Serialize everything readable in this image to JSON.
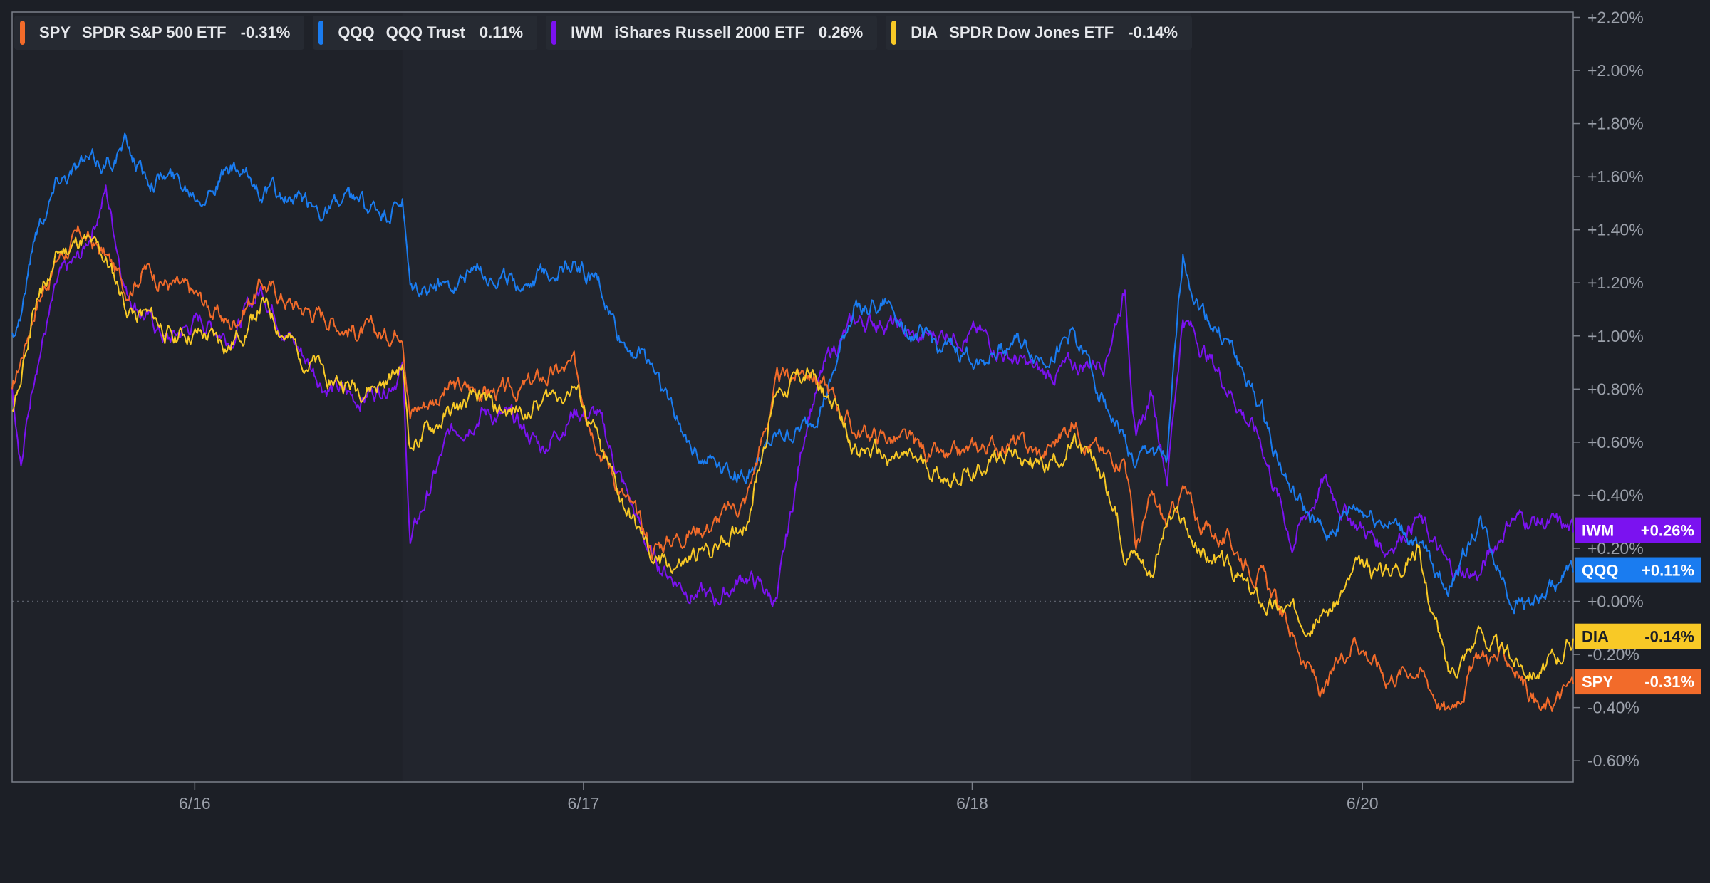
{
  "chart_data": {
    "type": "line",
    "title": "",
    "xlabel": "",
    "ylabel": "",
    "x_ticks": [
      "6/16",
      "6/17",
      "6/18",
      "6/20"
    ],
    "y_ticks": [
      "+2.20%",
      "+2.00%",
      "+1.80%",
      "+1.60%",
      "+1.40%",
      "+1.20%",
      "+1.00%",
      "+0.80%",
      "+0.60%",
      "+0.40%",
      "+0.20%",
      "+0.00%",
      "-0.20%",
      "-0.40%",
      "-0.60%"
    ],
    "y_tick_values": [
      2.2,
      2.0,
      1.8,
      1.6,
      1.4,
      1.2,
      1.0,
      0.8,
      0.6,
      0.4,
      0.2,
      0.0,
      -0.2,
      -0.4,
      -0.6
    ],
    "ylim": [
      -0.68,
      2.22
    ],
    "xlim": [
      0,
      100
    ],
    "x_tick_positions": [
      11.7,
      36.6,
      61.5,
      86.5
    ],
    "session_breaks": [
      25.0,
      75.5
    ],
    "zero_line": 0.0,
    "legend_position": "top-left",
    "series": [
      {
        "ticker": "SPY",
        "name": "SPDR S&P 500 ETF",
        "change": "-0.31%",
        "end_label": "-0.31%",
        "color": "#f26b2a",
        "x": [
          0,
          0.6,
          1.5,
          3,
          4.5,
          6,
          7.3,
          8.5,
          10,
          12,
          14,
          16,
          18,
          20,
          22,
          24,
          25,
          25.5,
          28,
          30,
          32,
          34,
          36,
          37.5,
          39,
          41,
          43,
          45,
          47,
          49,
          51,
          52.5,
          54,
          56,
          58,
          60,
          62,
          64,
          66,
          68,
          70,
          71.3,
          72,
          73,
          74,
          75,
          76,
          78,
          80,
          82,
          84,
          86,
          88,
          90,
          92,
          94,
          96,
          98,
          100
        ],
        "y": [
          0.78,
          0.92,
          1.12,
          1.3,
          1.38,
          1.3,
          1.18,
          1.26,
          1.2,
          1.14,
          1.04,
          1.2,
          1.12,
          1.08,
          1.02,
          1.0,
          1.05,
          0.72,
          0.8,
          0.8,
          0.78,
          0.84,
          0.88,
          0.62,
          0.42,
          0.2,
          0.26,
          0.3,
          0.38,
          0.82,
          0.88,
          0.78,
          0.64,
          0.62,
          0.58,
          0.52,
          0.58,
          0.6,
          0.55,
          0.68,
          0.54,
          0.56,
          0.2,
          0.38,
          0.28,
          0.42,
          0.3,
          0.22,
          0.1,
          -0.12,
          -0.36,
          -0.12,
          -0.28,
          -0.24,
          -0.42,
          -0.2,
          -0.22,
          -0.42,
          -0.31
        ]
      },
      {
        "ticker": "QQQ",
        "name": "QQQ Trust",
        "change": "0.11%",
        "end_label": "+0.11%",
        "color": "#1a7cf0",
        "x": [
          0,
          0.6,
          1.5,
          3,
          4.5,
          6,
          7.3,
          8.5,
          10,
          12,
          14,
          16,
          18,
          20,
          22,
          24,
          25,
          25.5,
          28,
          30,
          32,
          34,
          36,
          37.5,
          39,
          41,
          43,
          45,
          47,
          49,
          51,
          52.5,
          54,
          56,
          58,
          60,
          62,
          64,
          66,
          68,
          70,
          71.3,
          72,
          73,
          74,
          75,
          76,
          78,
          80,
          82,
          84,
          86,
          88,
          90,
          92,
          94,
          96,
          98,
          100
        ],
        "y": [
          1.0,
          1.1,
          1.4,
          1.6,
          1.65,
          1.65,
          1.72,
          1.6,
          1.6,
          1.55,
          1.62,
          1.55,
          1.5,
          1.48,
          1.5,
          1.45,
          1.5,
          1.15,
          1.2,
          1.26,
          1.2,
          1.24,
          1.28,
          1.2,
          0.98,
          0.9,
          0.62,
          0.54,
          0.48,
          0.6,
          0.65,
          0.82,
          1.12,
          1.12,
          1.0,
          0.94,
          0.92,
          0.98,
          0.92,
          1.0,
          0.76,
          0.6,
          0.5,
          0.58,
          0.52,
          1.3,
          1.12,
          0.96,
          0.72,
          0.4,
          0.24,
          0.35,
          0.3,
          0.22,
          0.05,
          0.3,
          0.02,
          0.0,
          0.11
        ]
      },
      {
        "ticker": "IWM",
        "name": "iShares Russell 2000 ETF",
        "change": "0.26%",
        "end_label": "+0.26%",
        "color": "#7b12f0",
        "x": [
          0,
          0.6,
          1.5,
          3,
          4.5,
          6,
          7.3,
          8.5,
          10,
          12,
          14,
          16,
          18,
          20,
          22,
          24,
          25,
          25.5,
          28,
          30,
          32,
          34,
          36,
          37.5,
          39,
          41,
          43,
          45,
          47,
          49,
          51,
          52.5,
          54,
          56,
          58,
          60,
          62,
          64,
          66,
          68,
          70,
          71.3,
          72,
          73,
          74,
          75,
          76,
          78,
          80,
          82,
          84,
          86,
          88,
          90,
          92,
          94,
          96,
          98,
          100
        ],
        "y": [
          0.8,
          0.52,
          0.9,
          1.2,
          1.3,
          1.55,
          1.18,
          1.08,
          0.98,
          1.06,
          1.0,
          1.18,
          0.98,
          0.82,
          0.76,
          0.82,
          0.88,
          0.22,
          0.62,
          0.72,
          0.68,
          0.58,
          0.72,
          0.7,
          0.46,
          0.16,
          0.06,
          0.0,
          0.1,
          0.0,
          0.72,
          0.94,
          1.05,
          1.06,
          0.98,
          1.02,
          1.0,
          0.92,
          0.85,
          0.88,
          0.92,
          1.18,
          0.6,
          0.78,
          0.48,
          1.08,
          0.98,
          0.8,
          0.6,
          0.22,
          0.45,
          0.3,
          0.2,
          0.32,
          0.12,
          0.1,
          0.32,
          0.3,
          0.26
        ]
      },
      {
        "ticker": "DIA",
        "name": "SPDR Dow Jones ETF",
        "change": "-0.14%",
        "end_label": "-0.14%",
        "color": "#f8c926",
        "x": [
          0,
          0.6,
          1.5,
          3,
          4.5,
          6,
          7.3,
          8.5,
          10,
          12,
          14,
          16,
          18,
          20,
          22,
          24,
          25,
          25.5,
          28,
          30,
          32,
          34,
          36,
          37.5,
          39,
          41,
          43,
          45,
          47,
          49,
          51,
          52.5,
          54,
          56,
          58,
          60,
          62,
          64,
          66,
          68,
          70,
          71.3,
          72,
          73,
          74,
          75,
          76,
          78,
          80,
          82,
          84,
          86,
          88,
          90,
          92,
          94,
          96,
          98,
          100
        ],
        "y": [
          0.72,
          0.84,
          1.12,
          1.3,
          1.36,
          1.28,
          1.12,
          1.08,
          1.02,
          1.0,
          0.96,
          1.12,
          0.96,
          0.86,
          0.8,
          0.82,
          0.88,
          0.58,
          0.7,
          0.76,
          0.7,
          0.76,
          0.82,
          0.6,
          0.38,
          0.16,
          0.14,
          0.2,
          0.3,
          0.8,
          0.86,
          0.74,
          0.58,
          0.54,
          0.52,
          0.46,
          0.5,
          0.58,
          0.5,
          0.58,
          0.46,
          0.2,
          0.2,
          0.12,
          0.3,
          0.3,
          0.18,
          0.12,
          0.0,
          -0.04,
          -0.06,
          0.1,
          0.12,
          0.2,
          -0.28,
          -0.12,
          -0.22,
          -0.26,
          -0.14
        ]
      }
    ]
  }
}
